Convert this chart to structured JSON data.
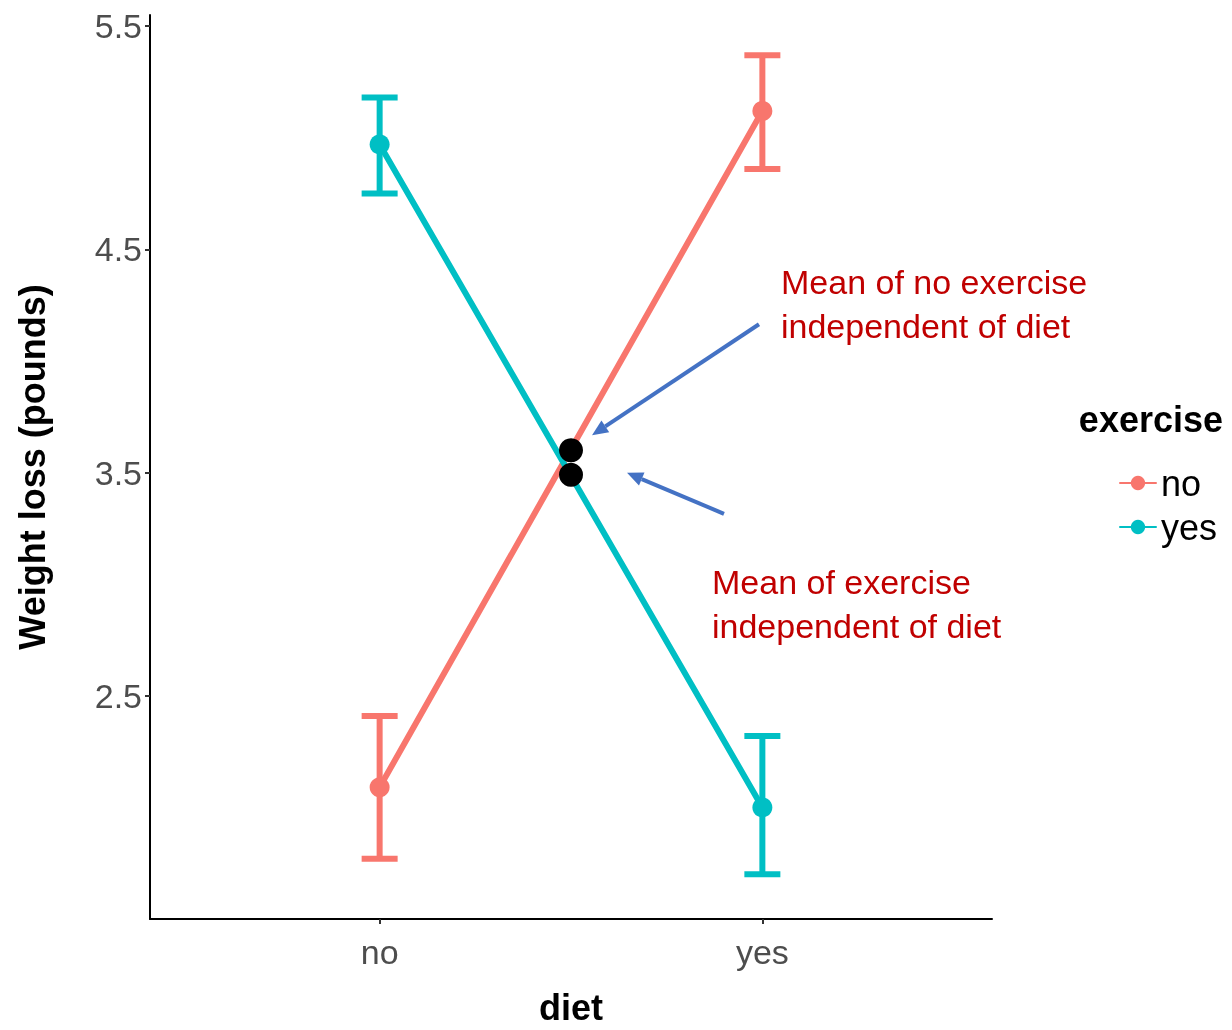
{
  "chart_data": {
    "type": "line",
    "xlabel": "diet",
    "ylabel": "Weight loss (pounds)",
    "legend_title": "exercise",
    "categories": [
      "no",
      null,
      "yes"
    ],
    "series": [
      {
        "name": "no",
        "color": "#f8766d",
        "values": [
          2.09,
          null,
          5.12
        ],
        "errors": [
          [
            1.77,
            2.41
          ],
          null,
          [
            4.86,
            5.37
          ]
        ]
      },
      {
        "name": "yes",
        "color": "#00bfc4",
        "values": [
          4.97,
          null,
          2.0
        ],
        "errors": [
          [
            4.75,
            5.18
          ],
          null,
          [
            1.7,
            2.32
          ]
        ]
      },
      {
        "type": "scatter",
        "color": "#000000",
        "values": [
          null,
          3.6,
          null
        ]
      },
      {
        "type": "scatter",
        "color": "#000000",
        "values": [
          null,
          3.49,
          null
        ]
      }
    ],
    "annotations": [
      "Mean of no exercise independent of diet",
      "Mean of exercise independent of diet"
    ],
    "ylim": [
      1.5,
      5.55
    ],
    "yticks": [
      2.5,
      3.5,
      4.5,
      5.5
    ],
    "grid": false,
    "legend": "right",
    "marker": "circle",
    "line_style": "solid"
  }
}
